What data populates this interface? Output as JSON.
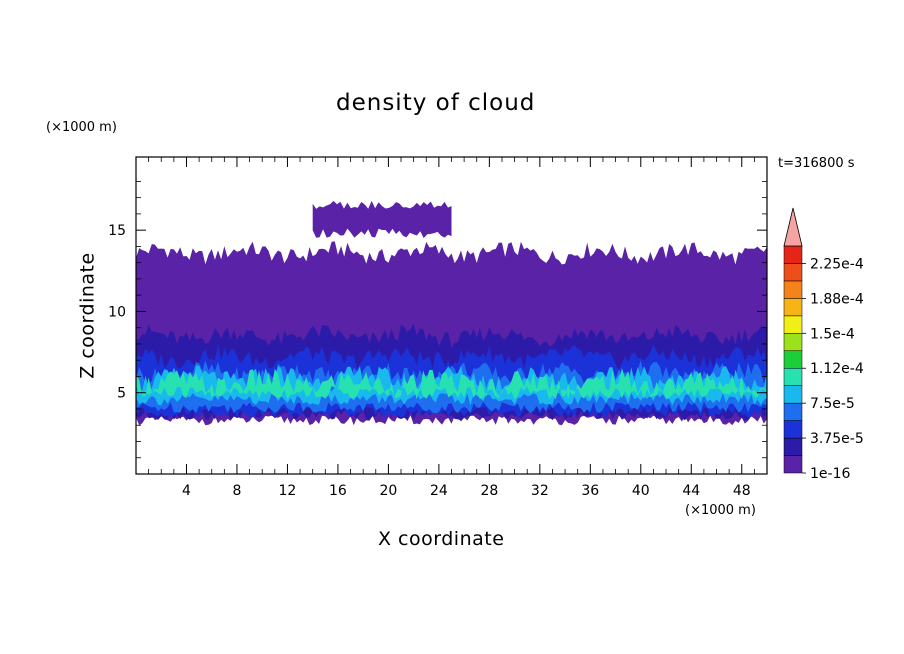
{
  "chart_data": {
    "type": "heatmap",
    "title": "density of cloud",
    "xlabel": "X coordinate",
    "ylabel": "Z coordinate",
    "x_unit": "(×1000 m)",
    "y_unit": "(×1000 m)",
    "time_label": "t=316800 s",
    "xlim": [
      0,
      50
    ],
    "ylim": [
      0,
      19.5
    ],
    "x_ticks": [
      4,
      8,
      12,
      16,
      20,
      24,
      28,
      32,
      36,
      40,
      44,
      48
    ],
    "y_ticks": [
      5,
      10,
      15
    ],
    "colorbar": {
      "levels": [
        "1e-16",
        "3.75e-5",
        "7.5e-5",
        "1.12e-4",
        "1.5e-4",
        "1.88e-4",
        "2.25e-4"
      ],
      "colors": [
        "#5a22a6",
        "#2c1ba8",
        "#1a32d8",
        "#1e6ff0",
        "#19b9ee",
        "#27e2b0",
        "#1ccf3a",
        "#9be21c",
        "#f2ef17",
        "#f7b417",
        "#f5821a",
        "#ee4f1a",
        "#e62418"
      ],
      "over_color": "#f6a3a3"
    },
    "layers": [
      {
        "level": 0,
        "bottom": 3.3,
        "top": 13.6,
        "note": "cloud base ~3.3 km, top ~13.6 km"
      },
      {
        "level": 1,
        "bottom": 3.6,
        "top": 8.5
      },
      {
        "level": 2,
        "bottom": 3.8,
        "top": 7.2
      },
      {
        "level": 3,
        "bottom": 4.1,
        "top": 6.2
      },
      {
        "level": 4,
        "bottom": 4.6,
        "top": 5.9
      },
      {
        "level": 5,
        "bottom": 5.0,
        "top": 5.6
      }
    ],
    "upper_cloud": {
      "x_range": [
        14,
        25
      ],
      "z_range": [
        14.5,
        16.8
      ]
    }
  }
}
